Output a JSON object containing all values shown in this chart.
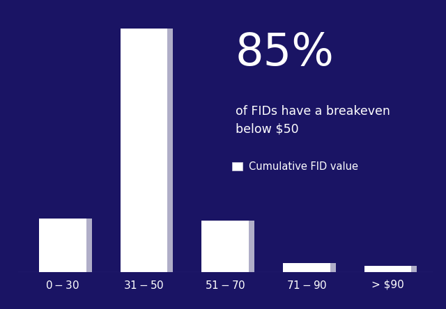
{
  "categories": [
    "$0 - $30",
    "$31 - $50",
    "$51 - $70",
    "$71 - $90",
    "> $90"
  ],
  "values": [
    22,
    100,
    21,
    3.5,
    2.5
  ],
  "bar_color": "#ffffff",
  "bar_shadow_color": "#b0aec8",
  "background_color": "#1a1464",
  "text_color": "#ffffff",
  "annotation_big": "85%",
  "annotation_small": "of FIDs have a breakeven\nbelow $50",
  "legend_label": "Cumulative FID value",
  "annotation_big_fontsize": 46,
  "annotation_small_fontsize": 12.5,
  "tick_fontsize": 11,
  "legend_fontsize": 10.5,
  "ylim_max": 108
}
